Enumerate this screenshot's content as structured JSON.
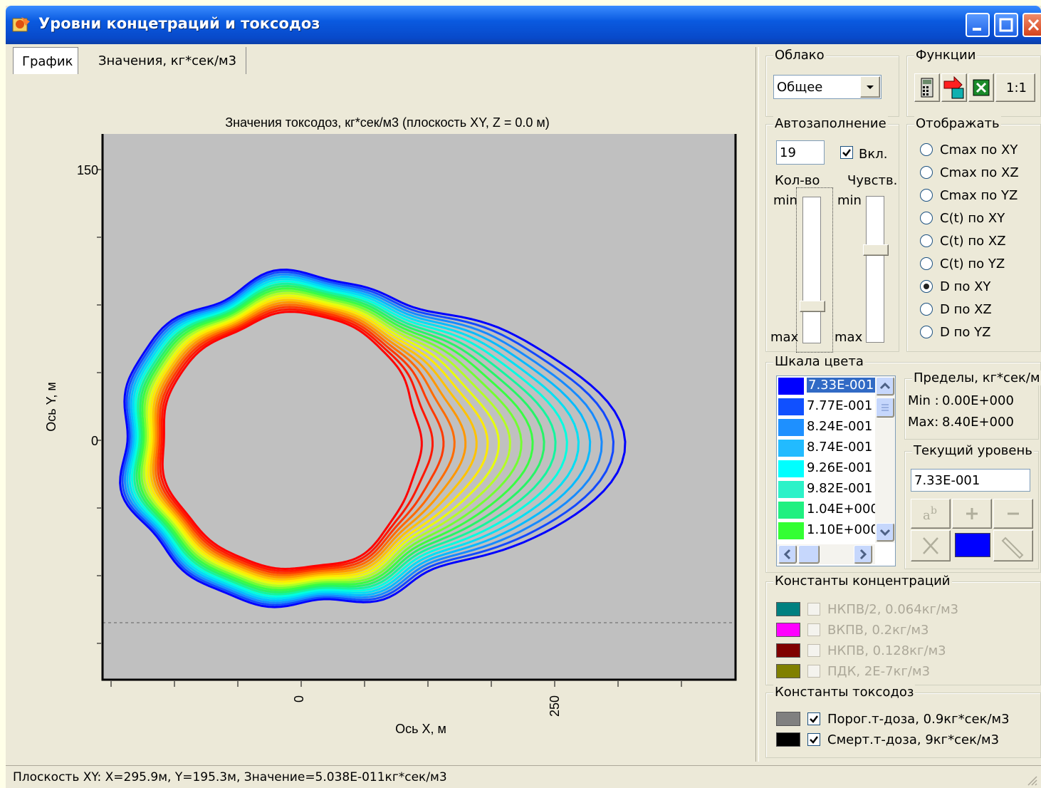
{
  "window": {
    "title": "Уровни концетраций и токсодоз"
  },
  "tabs": [
    {
      "label": "График"
    },
    {
      "label": "Значения, кг*сек/м3"
    }
  ],
  "chart": {
    "title": "Значения токсодоз, кг*сек/м3 (плоскость XY, Z = 0.0 м)",
    "xlabel": "Ось X, м",
    "ylabel": "Ось Y, м",
    "xticks": [
      "0",
      "250"
    ],
    "yticks": [
      "150",
      "0"
    ]
  },
  "chart_data": {
    "type": "heatmap",
    "title": "Значения токсодоз, кг*сек/м3 (плоскость XY, Z = 0.0 м)",
    "xlabel": "Ось X, м",
    "ylabel": "Ось Y, м",
    "xlim": [
      -190,
      425
    ],
    "ylim": [
      -140,
      175
    ],
    "contour_levels": [
      "7.33E-001",
      "7.77E-001",
      "8.24E-001",
      "8.74E-001",
      "9.26E-001",
      "9.82E-001",
      "1.04E+000",
      "1.10E+000"
    ],
    "contour_colors": [
      "#0000ff",
      "#1050ff",
      "#1e90ff",
      "#22bbff",
      "#00ffff",
      "#2cf2c8",
      "#20f080",
      "#33ff33"
    ],
    "level_count": 19,
    "grid": false
  },
  "cloud": {
    "label": "Облако",
    "selected": "Общее"
  },
  "functions": {
    "label": "Функции",
    "scale_button": "1:1",
    "icons": [
      "calculator-icon",
      "export-icon",
      "excel-icon"
    ]
  },
  "autofill": {
    "label": "Автозаполнение",
    "value": "19",
    "enabled_label": "Вкл.",
    "enabled": true,
    "count_label": "Кол-во",
    "sens_label": "Чувств.",
    "min_label": "min",
    "max_label": "max"
  },
  "display": {
    "label": "Отображать",
    "options": [
      "Cmax по XY",
      "Cmax по XZ",
      "Cmax по YZ",
      "C(t) по XY",
      "C(t) по XZ",
      "C(t) по YZ",
      "D по XY",
      "D по XZ",
      "D по YZ"
    ],
    "selected_index": 6
  },
  "color_scale": {
    "label": "Шкала цвета",
    "items": [
      {
        "color": "#0000ff",
        "value": "7.33E-001"
      },
      {
        "color": "#1050ff",
        "value": "7.77E-001"
      },
      {
        "color": "#1e90ff",
        "value": "8.24E-001"
      },
      {
        "color": "#22bbff",
        "value": "8.74E-001"
      },
      {
        "color": "#00ffff",
        "value": "9.26E-001"
      },
      {
        "color": "#2cf2c8",
        "value": "9.82E-001"
      },
      {
        "color": "#20f080",
        "value": "1.04E+000"
      },
      {
        "color": "#33ff33",
        "value": "1.10E+000"
      }
    ],
    "selected_index": 0
  },
  "limits": {
    "label": "Пределы, кг*сек/м",
    "min_label": "Min :",
    "min_value": "0.00E+000",
    "max_label": "Max:",
    "max_value": "8.40E+000"
  },
  "current_level": {
    "label": "Текущий уровень",
    "value": "7.33E-001",
    "color": "#0000ff"
  },
  "conc_constants": {
    "label": "Константы концентраций",
    "items": [
      {
        "color": "#008080",
        "text": "НКПВ/2, 0.064кг/м3",
        "checked": false
      },
      {
        "color": "#ff00ff",
        "text": "ВКПВ, 0.2кг/м3",
        "checked": false
      },
      {
        "color": "#800000",
        "text": "НКПВ, 0.128кг/м3",
        "checked": false
      },
      {
        "color": "#808000",
        "text": "ПДК, 2Е-7кг/м3",
        "checked": false
      }
    ]
  },
  "tox_constants": {
    "label": "Константы токсодоз",
    "items": [
      {
        "color": "#808080",
        "text": "Порог.т-доза, 0.9кг*сек/м3",
        "checked": true
      },
      {
        "color": "#000000",
        "text": "Смерт.т-доза, 9кг*сек/м3",
        "checked": true
      }
    ]
  },
  "status": {
    "text": "Плоскость XY: X=295.9м, Y=195.3м, Значение=5.038E-011кг*сек/м3"
  }
}
